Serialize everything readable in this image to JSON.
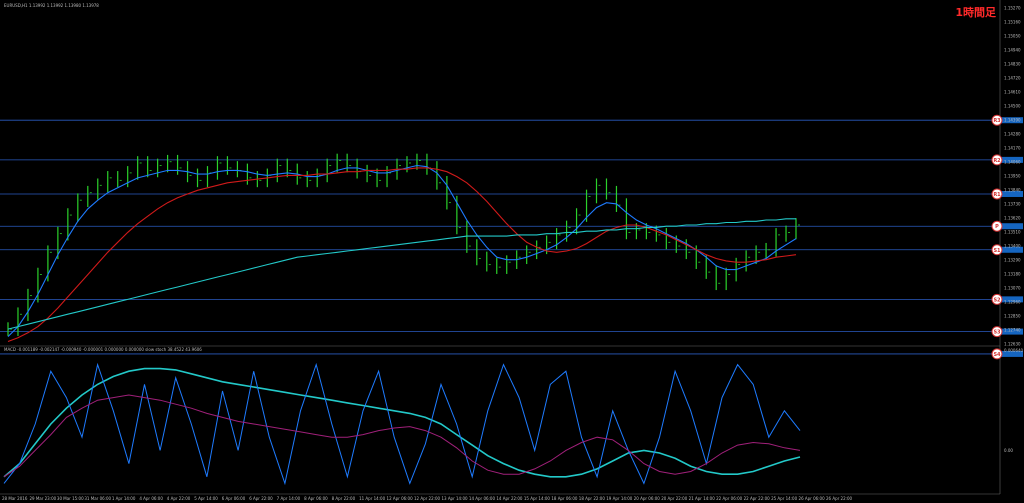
{
  "header": {
    "symbol_info": "EURUSD,H1  1.13992 1.13992 1.13980 1.13978",
    "timeframe_badge": "1時間足"
  },
  "macd_info": "MACD -0.001189 -0.002147 -0.000940  -0.000001 0.000000 0.000000  slow stoch 38.4522 43.9606",
  "chart_data": [
    {
      "type": "line",
      "subtype": "candlestick",
      "title": "",
      "x_ticks": [
        "28 Mar 2016",
        "29 Mar 23:00",
        "30 Mar 15:00",
        "31 Mar 06:00",
        "1 Apr 14:00",
        "4 Apr 06:00",
        "4 Apr 22:00",
        "5 Apr 14:00",
        "6 Apr 06:00",
        "6 Apr 22:00",
        "7 Apr 14:00",
        "8 Apr 06:00",
        "8 Apr 22:00",
        "11 Apr 14:00",
        "12 Apr 06:00",
        "12 Apr 22:00",
        "13 Apr 14:00",
        "14 Apr 06:00",
        "14 Apr 22:00",
        "15 Apr 14:00",
        "18 Apr 06:00",
        "18 Apr 22:00",
        "19 Apr 14:00",
        "20 Apr 06:00",
        "20 Apr 22:00",
        "21 Apr 14:00",
        "22 Apr 06:00",
        "22 Apr 22:00",
        "25 Apr 14:00",
        "26 Apr 06:00",
        "26 Apr 22:00"
      ],
      "y_ticks": [
        "1.15270",
        "1.15160",
        "1.15050",
        "1.14940",
        "1.14830",
        "1.14720",
        "1.14610",
        "1.14500",
        "1.14390",
        "1.14280",
        "1.14170",
        "1.14060",
        "1.13950",
        "1.13840",
        "1.13730",
        "1.13620",
        "1.13510",
        "1.13400",
        "1.13290",
        "1.13180",
        "1.13070",
        "1.12960",
        "1.12850",
        "1.12740",
        "1.12630"
      ],
      "ylim": [
        1.1256,
        1.1527
      ],
      "price_close": [
        1.1268,
        1.128,
        1.1295,
        1.1312,
        1.133,
        1.1345,
        1.136,
        1.1372,
        1.1378,
        1.1384,
        1.139,
        1.1388,
        1.1394,
        1.1402,
        1.1396,
        1.14,
        1.1403,
        1.1398,
        1.1392,
        1.1388,
        1.1394,
        1.1402,
        1.1398,
        1.1396,
        1.139,
        1.1388,
        1.1392,
        1.14,
        1.1396,
        1.139,
        1.1388,
        1.1392,
        1.14,
        1.1404,
        1.14,
        1.1395,
        1.1392,
        1.1388,
        1.1394,
        1.14,
        1.1402,
        1.1404,
        1.1398,
        1.1386,
        1.137,
        1.135,
        1.1335,
        1.1325,
        1.132,
        1.1318,
        1.1322,
        1.1326,
        1.133,
        1.1334,
        1.1338,
        1.1344,
        1.135,
        1.136,
        1.1375,
        1.1384,
        1.1378,
        1.1368,
        1.1346,
        1.1348,
        1.1346,
        1.1344,
        1.1338,
        1.1335,
        1.133,
        1.1322,
        1.1314,
        1.1305,
        1.1312,
        1.132,
        1.1326,
        1.133,
        1.1332,
        1.1344,
        1.1346,
        1.1352
      ],
      "lines": [
        {
          "name": "MA fast",
          "color": "#1e7bff",
          "values": [
            1.1262,
            1.127,
            1.1282,
            1.1296,
            1.1312,
            1.1328,
            1.1342,
            1.1355,
            1.1365,
            1.1372,
            1.1378,
            1.1382,
            1.1386,
            1.139,
            1.1392,
            1.1394,
            1.1396,
            1.1396,
            1.1395,
            1.1393,
            1.1393,
            1.1395,
            1.1396,
            1.1396,
            1.1395,
            1.1393,
            1.1392,
            1.1393,
            1.1394,
            1.1393,
            1.1391,
            1.1391,
            1.1393,
            1.1396,
            1.1398,
            1.1398,
            1.1396,
            1.1394,
            1.1394,
            1.1396,
            1.1398,
            1.14,
            1.1399,
            1.1394,
            1.1384,
            1.137,
            1.1356,
            1.1344,
            1.1334,
            1.1326,
            1.1324,
            1.1324,
            1.1326,
            1.1329,
            1.1332,
            1.1336,
            1.1342,
            1.1349,
            1.1358,
            1.1366,
            1.137,
            1.1369,
            1.1362,
            1.1356,
            1.1352,
            1.1349,
            1.1345,
            1.1341,
            1.1337,
            1.1332,
            1.1326,
            1.1319,
            1.1316,
            1.1316,
            1.1319,
            1.1322,
            1.1325,
            1.1331,
            1.1336,
            1.1341
          ]
        },
        {
          "name": "MA mid",
          "color": "#d01a1a",
          "values": [
            1.1258,
            1.1261,
            1.1265,
            1.127,
            1.1277,
            1.1285,
            1.1294,
            1.1303,
            1.1312,
            1.1321,
            1.133,
            1.1338,
            1.1346,
            1.1353,
            1.1359,
            1.1365,
            1.137,
            1.1374,
            1.1377,
            1.138,
            1.1382,
            1.1384,
            1.1386,
            1.1387,
            1.1388,
            1.1389,
            1.139,
            1.1391,
            1.1392,
            1.1392,
            1.1392,
            1.1393,
            1.1393,
            1.1394,
            1.1395,
            1.1395,
            1.1396,
            1.1396,
            1.1396,
            1.1397,
            1.1397,
            1.1398,
            1.1398,
            1.1397,
            1.1395,
            1.1391,
            1.1386,
            1.1379,
            1.1371,
            1.1362,
            1.1353,
            1.1345,
            1.1338,
            1.1334,
            1.1331,
            1.133,
            1.1331,
            1.1333,
            1.1337,
            1.1342,
            1.1347,
            1.135,
            1.1352,
            1.1352,
            1.135,
            1.1347,
            1.1344,
            1.134,
            1.1336,
            1.1332,
            1.1328,
            1.1325,
            1.1323,
            1.1322,
            1.1322,
            1.1323,
            1.1324,
            1.1326,
            1.1327,
            1.1328
          ]
        },
        {
          "name": "MA slow",
          "color": "#23c9c9",
          "values": [
            1.1268,
            1.127,
            1.1272,
            1.1274,
            1.1276,
            1.1278,
            1.128,
            1.1282,
            1.1284,
            1.1286,
            1.1288,
            1.129,
            1.1292,
            1.1294,
            1.1296,
            1.1298,
            1.13,
            1.1302,
            1.1304,
            1.1306,
            1.1308,
            1.131,
            1.1312,
            1.1314,
            1.1316,
            1.1318,
            1.132,
            1.1322,
            1.1324,
            1.1326,
            1.1327,
            1.1328,
            1.1329,
            1.133,
            1.1331,
            1.1332,
            1.1333,
            1.1334,
            1.1335,
            1.1336,
            1.1337,
            1.1338,
            1.1339,
            1.134,
            1.1341,
            1.1342,
            1.1343,
            1.1343,
            1.1343,
            1.1343,
            1.1343,
            1.1344,
            1.1344,
            1.1344,
            1.1345,
            1.1345,
            1.1346,
            1.1346,
            1.1347,
            1.1347,
            1.1348,
            1.1348,
            1.1349,
            1.1349,
            1.135,
            1.135,
            1.1351,
            1.1351,
            1.1352,
            1.1352,
            1.1353,
            1.1353,
            1.1354,
            1.1354,
            1.1355,
            1.1355,
            1.1356,
            1.1356,
            1.1357,
            1.1357
          ]
        }
      ],
      "horizontal_levels": [
        {
          "value": 1.14365,
          "badge": "R3"
        },
        {
          "value": 1.14045,
          "badge": "R2"
        },
        {
          "value": 1.1377,
          "badge": "R1"
        },
        {
          "value": 1.1351,
          "badge": "P"
        },
        {
          "value": 1.1332,
          "badge": "S1"
        },
        {
          "value": 1.1292,
          "badge": "S2"
        },
        {
          "value": 1.1266,
          "badge": "S3"
        },
        {
          "value": 1.1248,
          "badge": "S4"
        }
      ],
      "level_label_color": "#1565c0",
      "badge_color": "#d32f2f"
    },
    {
      "type": "line",
      "title": "",
      "y_ticks": [
        "0.000640",
        "0.00"
      ],
      "series": [
        {
          "color": "#23c9c9",
          "values": [
            0.1,
            0.2,
            0.35,
            0.5,
            0.62,
            0.72,
            0.8,
            0.86,
            0.9,
            0.92,
            0.92,
            0.91,
            0.88,
            0.85,
            0.82,
            0.8,
            0.78,
            0.76,
            0.74,
            0.72,
            0.7,
            0.68,
            0.66,
            0.64,
            0.62,
            0.6,
            0.58,
            0.55,
            0.5,
            0.42,
            0.34,
            0.26,
            0.2,
            0.15,
            0.12,
            0.1,
            0.1,
            0.12,
            0.16,
            0.22,
            0.28,
            0.3,
            0.28,
            0.24,
            0.18,
            0.14,
            0.12,
            0.12,
            0.14,
            0.18,
            0.22,
            0.25
          ]
        },
        {
          "color": "#1e7bff",
          "values": [
            0.05,
            0.2,
            0.5,
            0.9,
            0.7,
            0.4,
            0.95,
            0.6,
            0.2,
            0.8,
            0.3,
            0.85,
            0.5,
            0.1,
            0.75,
            0.3,
            0.9,
            0.4,
            0.05,
            0.6,
            0.95,
            0.5,
            0.1,
            0.6,
            0.9,
            0.4,
            0.05,
            0.35,
            0.8,
            0.5,
            0.1,
            0.6,
            0.95,
            0.7,
            0.3,
            0.8,
            0.9,
            0.4,
            0.1,
            0.6,
            0.3,
            0.05,
            0.4,
            0.9,
            0.6,
            0.2,
            0.7,
            0.95,
            0.8,
            0.4,
            0.6,
            0.45
          ]
        },
        {
          "color": "#a0207a",
          "values": [
            0.1,
            0.18,
            0.3,
            0.42,
            0.55,
            0.62,
            0.68,
            0.7,
            0.72,
            0.7,
            0.68,
            0.65,
            0.62,
            0.58,
            0.55,
            0.52,
            0.5,
            0.48,
            0.46,
            0.44,
            0.42,
            0.4,
            0.4,
            0.42,
            0.45,
            0.47,
            0.48,
            0.45,
            0.4,
            0.32,
            0.22,
            0.15,
            0.12,
            0.12,
            0.16,
            0.22,
            0.3,
            0.36,
            0.4,
            0.38,
            0.3,
            0.2,
            0.14,
            0.12,
            0.14,
            0.2,
            0.28,
            0.34,
            0.36,
            0.35,
            0.32,
            0.3
          ]
        }
      ]
    }
  ]
}
